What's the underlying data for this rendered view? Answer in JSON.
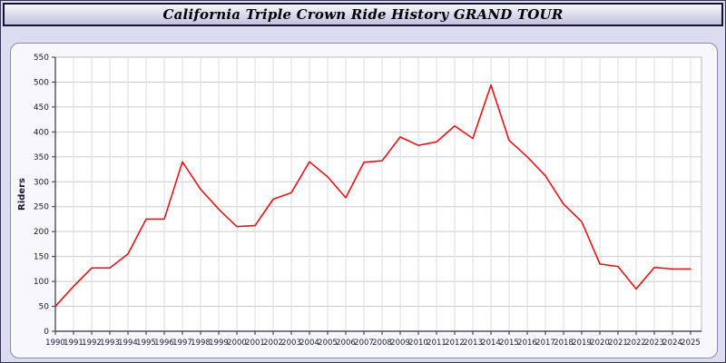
{
  "header": {
    "title": "California Triple Crown Ride History GRAND TOUR"
  },
  "chart_data": {
    "type": "line",
    "title": "California Triple Crown Ride History GRAND TOUR",
    "xlabel": "",
    "ylabel": "Riders",
    "ylim": [
      0,
      550
    ],
    "ytick_step": 50,
    "grid": true,
    "legend": "none",
    "x": [
      1990,
      1991,
      1992,
      1993,
      1994,
      1995,
      1996,
      1997,
      1998,
      1999,
      2000,
      2001,
      2002,
      2003,
      2004,
      2005,
      2006,
      2007,
      2008,
      2009,
      2010,
      2011,
      2012,
      2013,
      2014,
      2015,
      2016,
      2017,
      2018,
      2019,
      2020,
      2021,
      2022,
      2023,
      2024,
      2025
    ],
    "series": [
      {
        "name": "Riders",
        "color": "#ee1111",
        "values": [
          50,
          90,
          127,
          127,
          155,
          225,
          225,
          340,
          285,
          245,
          210,
          212,
          265,
          278,
          340,
          310,
          268,
          339,
          342,
          390,
          373,
          380,
          412,
          387,
          494,
          383,
          350,
          312,
          255,
          220,
          135,
          130,
          85,
          128,
          125,
          125
        ]
      }
    ],
    "colors": {
      "plot_background": "#ffffff",
      "gridline": "#cccccc",
      "axis": "#333344",
      "tick_label": "#1a1a33"
    }
  }
}
